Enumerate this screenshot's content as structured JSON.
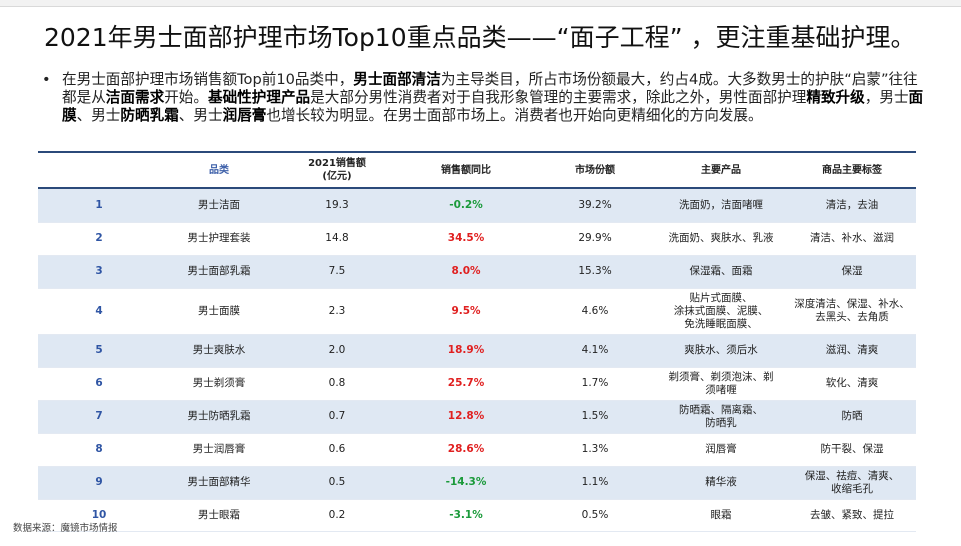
{
  "title": "2021年男士面部护理市场Top10重点品类——“面子工程” ，更注重基础护理。",
  "paragraph": {
    "bullet": "•",
    "segments": [
      {
        "text": "在男士面部护理市场销售额Top前10品类中，",
        "bold": false
      },
      {
        "text": "男士面部清洁",
        "bold": true
      },
      {
        "text": "为主导类目，所占市场份额最大，约占4成。大多数男士的护肤“启蒙”往往都是从",
        "bold": false
      },
      {
        "text": "洁面需求",
        "bold": true
      },
      {
        "text": "开始。",
        "bold": false
      },
      {
        "text": "基础性护理产品",
        "bold": true
      },
      {
        "text": "是大部分男性消费者对于自我形象管理的主要需求，除此之外，男性面部护理",
        "bold": false
      },
      {
        "text": "精致升级",
        "bold": true
      },
      {
        "text": "，男士",
        "bold": false
      },
      {
        "text": "面膜",
        "bold": true
      },
      {
        "text": "、男士",
        "bold": false
      },
      {
        "text": "防晒乳霜",
        "bold": true
      },
      {
        "text": "、男士",
        "bold": false
      },
      {
        "text": "润唇膏",
        "bold": true
      },
      {
        "text": "也增长较为明显。在男士面部市场上。消费者也开始向更精细化的方向发展。",
        "bold": false
      }
    ]
  },
  "table": {
    "headers": {
      "rank": "",
      "category": "品类",
      "sales": "2021销售额\n(亿元)",
      "yoy": "销售额同比",
      "share": "市场份额",
      "products": "主要产品",
      "tags": "商品主要标签"
    },
    "rows": [
      {
        "rank": "1",
        "category": "男士洁面",
        "sales": "19.3",
        "yoy": "-0.2%",
        "trend": "neg",
        "share": "39.2%",
        "products": "洗面奶，洁面啫喱",
        "tags": "清洁，去油"
      },
      {
        "rank": "2",
        "category": "男士护理套装",
        "sales": "14.8",
        "yoy": "34.5%",
        "trend": "pos",
        "share": "29.9%",
        "products": "洗面奶、爽肤水、乳液",
        "tags": "清洁、补水、滋润"
      },
      {
        "rank": "3",
        "category": "男士面部乳霜",
        "sales": "7.5",
        "yoy": "8.0%",
        "trend": "pos",
        "share": "15.3%",
        "products": "保湿霜、面霜",
        "tags": "保湿"
      },
      {
        "rank": "4",
        "category": "男士面膜",
        "sales": "2.3",
        "yoy": "9.5%",
        "trend": "pos",
        "share": "4.6%",
        "products": "贴片式面膜、\n涂抹式面膜、泥膜、\n免洗睡眠面膜、",
        "tags": "深度清洁、保湿、补水、\n去黑头、去角质"
      },
      {
        "rank": "5",
        "category": "男士爽肤水",
        "sales": "2.0",
        "yoy": "18.9%",
        "trend": "pos",
        "share": "4.1%",
        "products": "爽肤水、须后水",
        "tags": "滋润、清爽"
      },
      {
        "rank": "6",
        "category": "男士剃须膏",
        "sales": "0.8",
        "yoy": "25.7%",
        "trend": "pos",
        "share": "1.7%",
        "products": "剃须膏、剃须泡沫、剃\n须啫喱",
        "tags": "软化、清爽"
      },
      {
        "rank": "7",
        "category": "男士防晒乳霜",
        "sales": "0.7",
        "yoy": "12.8%",
        "trend": "pos",
        "share": "1.5%",
        "products": "防晒霜、隔离霜、\n防晒乳",
        "tags": "防晒"
      },
      {
        "rank": "8",
        "category": "男士润唇膏",
        "sales": "0.6",
        "yoy": "28.6%",
        "trend": "pos",
        "share": "1.3%",
        "products": "润唇膏",
        "tags": "防干裂、保湿"
      },
      {
        "rank": "9",
        "category": "男士面部精华",
        "sales": "0.5",
        "yoy": "-14.3%",
        "trend": "neg",
        "share": "1.1%",
        "products": "精华液",
        "tags": "保湿、祛痘、清爽、\n收缩毛孔"
      },
      {
        "rank": "10",
        "category": "男士眼霜",
        "sales": "0.2",
        "yoy": "-3.1%",
        "trend": "neg",
        "share": "0.5%",
        "products": "眼霜",
        "tags": "去皱、紧致、提拉"
      }
    ]
  },
  "source": "数据来源：魔镜市场情报",
  "colors": {
    "positive": "#e02020",
    "negative": "#1a9a3a",
    "rank": "#2f55a4",
    "row_band": "#dfe8f3",
    "header_rule": "#2b4a7a"
  }
}
